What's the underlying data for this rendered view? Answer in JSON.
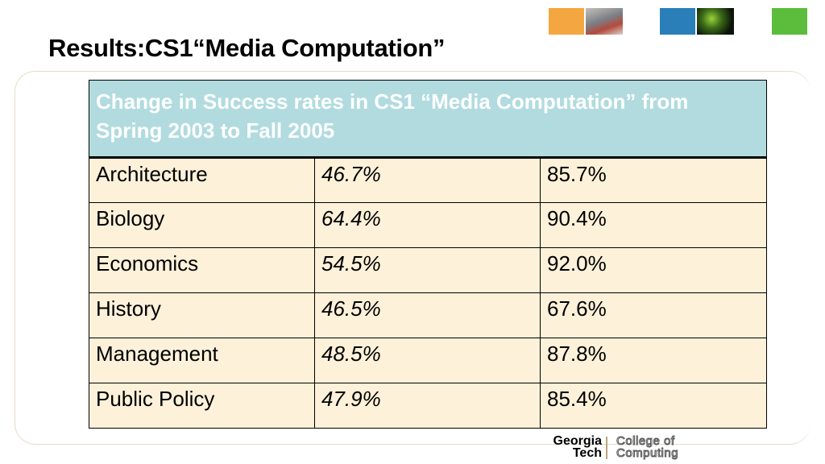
{
  "slide": {
    "title": "Results:CS1“Media Computation”"
  },
  "table": {
    "header": "Change in Success rates in CS1 “Media Computation” from Spring 2003 to Fall 2005",
    "rows": [
      {
        "major": "Architecture",
        "before": "46.7%",
        "after": "85.7%"
      },
      {
        "major": "Biology",
        "before": "64.4%",
        "after": "90.4%"
      },
      {
        "major": "Economics",
        "before": "54.5%",
        "after": "92.0%"
      },
      {
        "major": "History",
        "before": "46.5%",
        "after": "67.6%"
      },
      {
        "major": "Management",
        "before": "48.5%",
        "after": "87.8%"
      },
      {
        "major": "Public Policy",
        "before": "47.9%",
        "after": "85.4%"
      }
    ]
  },
  "logo": {
    "line1": "Georgia",
    "line2": "Tech",
    "college1": "College of",
    "college2": "Computing"
  },
  "colors": {
    "header_bg": "#b1dbdf",
    "cell_bg": "#fdf1d9",
    "accent_orange": "#f4a740",
    "accent_blue": "#2b7fb8",
    "accent_green": "#5cbd3c"
  }
}
